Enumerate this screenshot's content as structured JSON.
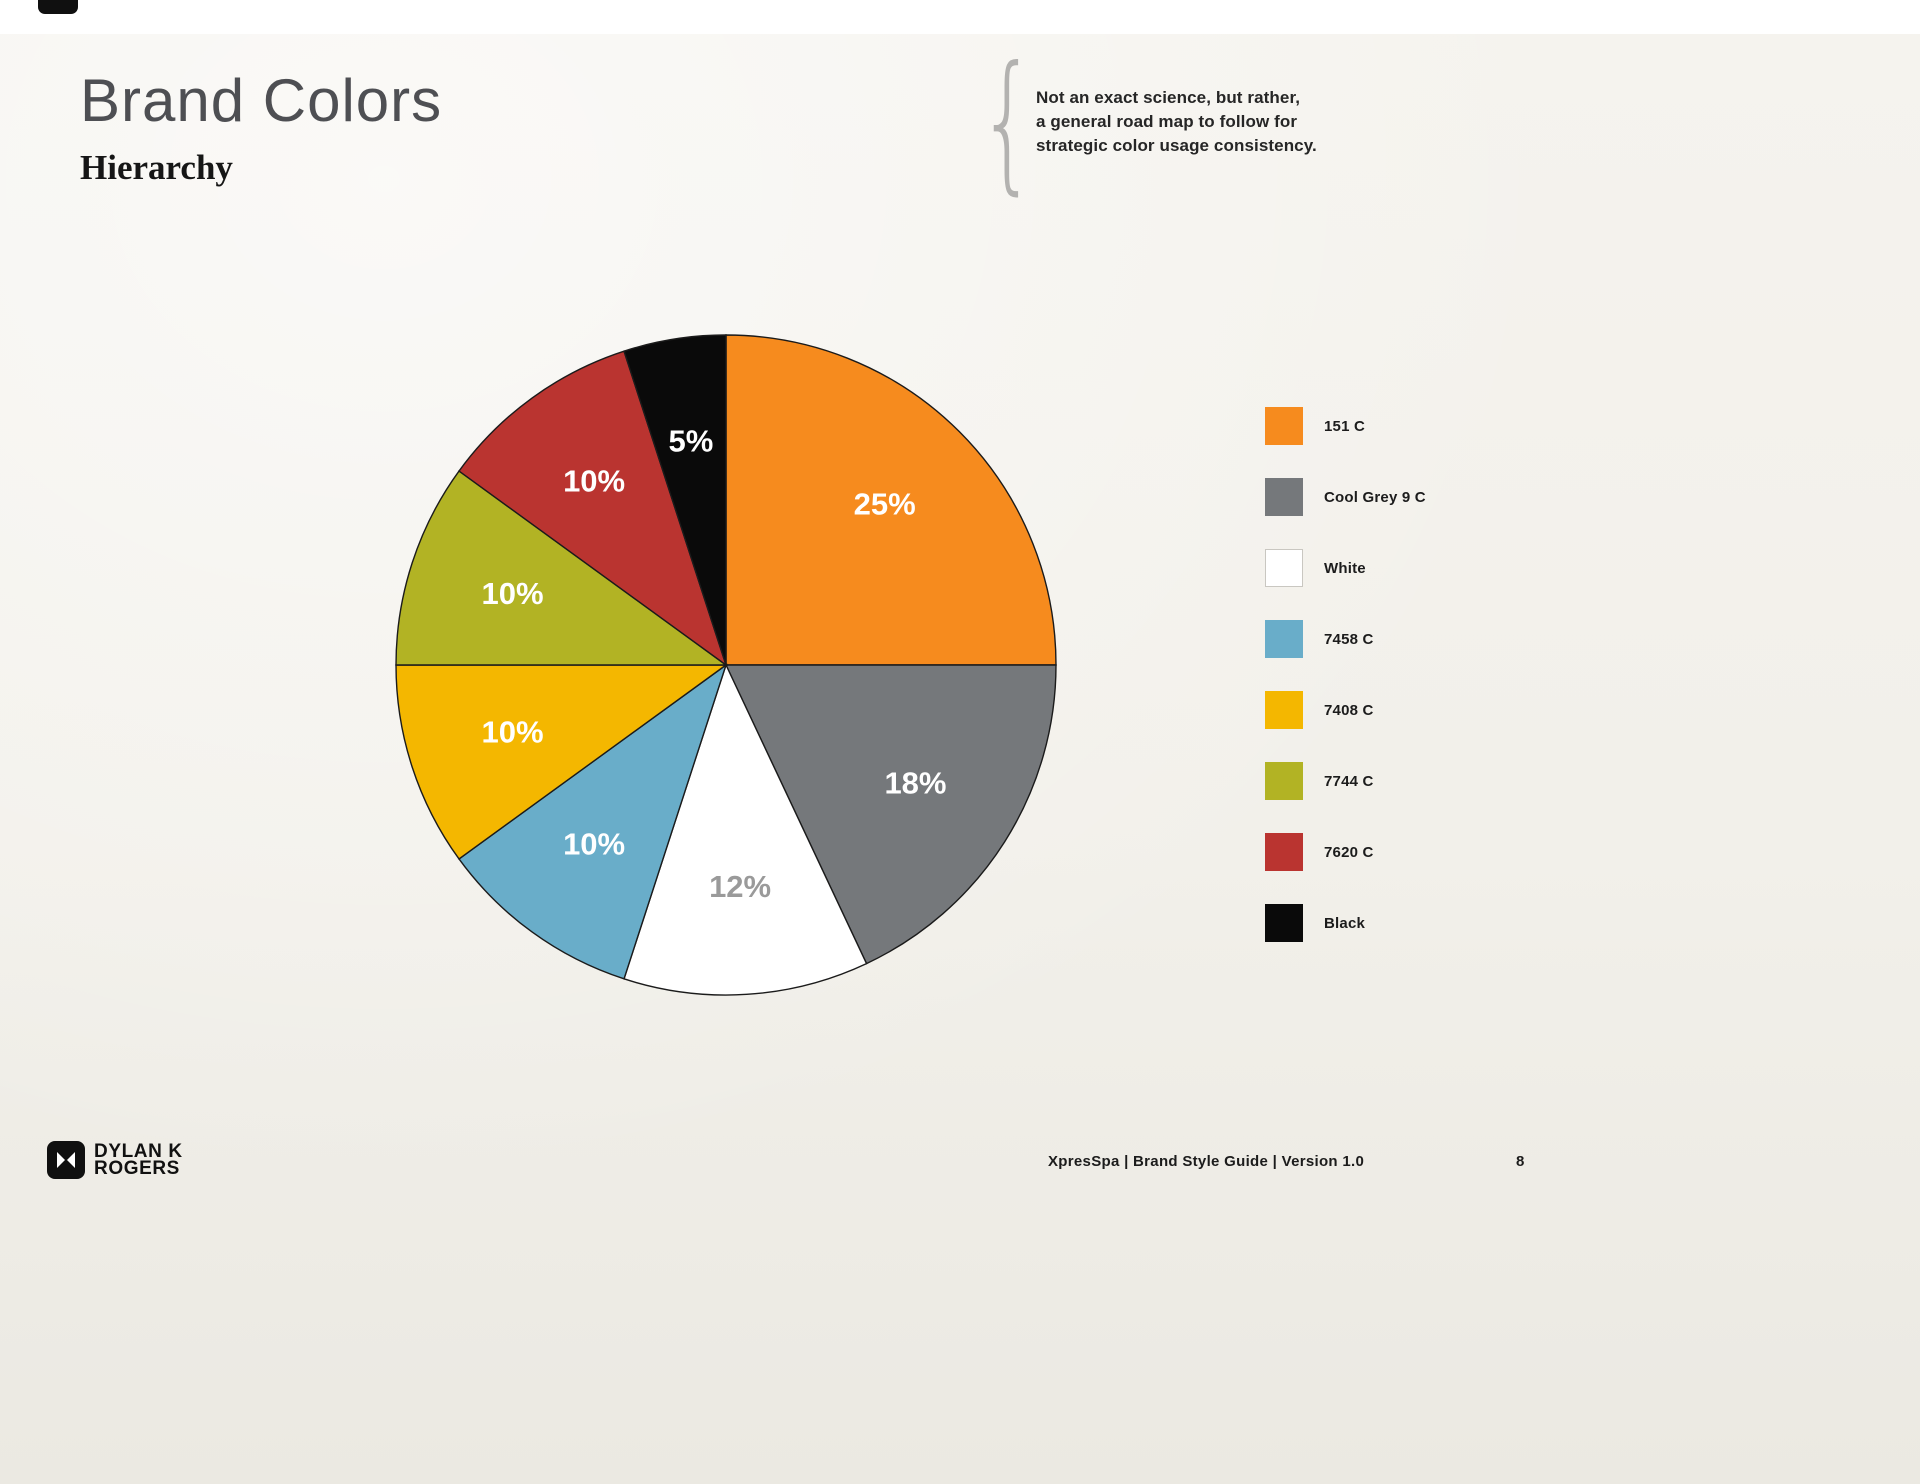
{
  "page": {
    "title": "Brand Colors",
    "subtitle": "Hierarchy",
    "annotation": {
      "brace": "{",
      "lines": [
        "Not an exact science, but rather,",
        "a general road map to follow for",
        "strategic color usage consistency."
      ]
    },
    "footer": {
      "logo_line1": "DYLAN K",
      "logo_line2": "ROGERS",
      "text": "XpresSpa   |   Brand Style Guide   |   Version 1.0",
      "page_number": "8"
    }
  },
  "chart_data": {
    "type": "pie",
    "title": "Brand color usage hierarchy",
    "start_angle_deg": -90,
    "direction": "clockwise",
    "legend_position": "right",
    "value_suffix": "%",
    "slices": [
      {
        "label": "151 C",
        "value": 25,
        "color": "#F68B1E",
        "text_color": "#FFFFFF"
      },
      {
        "label": "Cool Grey 9 C",
        "value": 18,
        "color": "#75787B",
        "text_color": "#FFFFFF"
      },
      {
        "label": "White",
        "value": 12,
        "color": "#FFFFFF",
        "text_color": "#9A9A9A"
      },
      {
        "label": "7458 C",
        "value": 10,
        "color": "#69ADC9",
        "text_color": "#FFFFFF"
      },
      {
        "label": "7408 C",
        "value": 10,
        "color": "#F4B700",
        "text_color": "#FFFFFF"
      },
      {
        "label": "7744 C",
        "value": 10,
        "color": "#B2B324",
        "text_color": "#FFFFFF"
      },
      {
        "label": "7620 C",
        "value": 10,
        "color": "#BA3430",
        "text_color": "#FFFFFF"
      },
      {
        "label": "Black",
        "value": 5,
        "color": "#0A0A0A",
        "text_color": "#FFFFFF"
      }
    ]
  }
}
